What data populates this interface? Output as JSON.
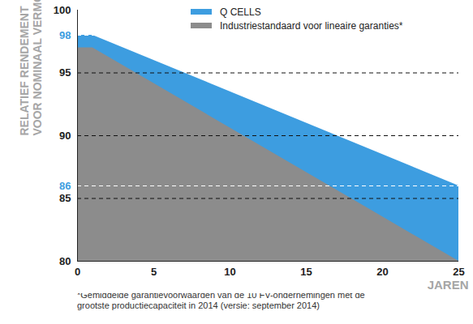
{
  "chart_data": {
    "type": "area",
    "x": [
      0,
      1,
      25
    ],
    "series": [
      {
        "name": "Q CELLS",
        "color": "#3d9de0",
        "values": [
          98,
          98,
          86
        ]
      },
      {
        "name": "Industriestandaard voor lineaire garanties*",
        "color": "#8c8c8c",
        "values": [
          97,
          97,
          80
        ]
      }
    ],
    "xlim": [
      0,
      25
    ],
    "xticks": [
      0,
      5,
      10,
      15,
      20,
      25
    ],
    "ylim": [
      80,
      100
    ],
    "yticks": [
      80,
      85,
      86,
      90,
      95,
      98,
      100
    ],
    "x_label": "JAREN",
    "y_label": "RELATIEF RENDEMENT\nVOOR NOMINAAL VERMOGEN [%]",
    "footnote": "*Gemiddelde garantievoorwaarden van de 10 FV-ondernemingen met de grootste productiecapaciteit in 2014 (versie: september 2014)",
    "grid": true,
    "legend": "top"
  }
}
